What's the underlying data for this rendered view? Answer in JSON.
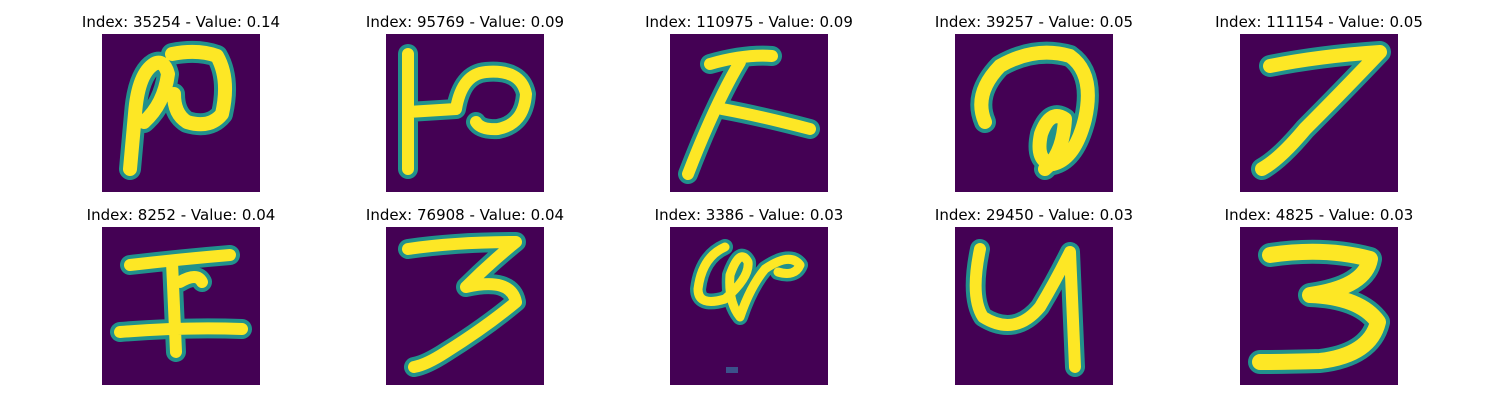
{
  "figure": {
    "panels": [
      {
        "title": "Index: 35254 - Value: 0.14",
        "glyph": "ro-like",
        "colormap": "viridis"
      },
      {
        "title": "Index: 95769 - Value: 0.09",
        "glyph": "hook-P",
        "colormap": "viridis"
      },
      {
        "title": "Index: 110975 - Value: 0.09",
        "glyph": "lambda-like",
        "colormap": "viridis"
      },
      {
        "title": "Index: 39257 - Value: 0.05",
        "glyph": "loop-a",
        "colormap": "viridis"
      },
      {
        "title": "Index: 111154 - Value: 0.05",
        "glyph": "seven",
        "colormap": "viridis"
      },
      {
        "title": "Index: 8252 - Value: 0.04",
        "glyph": "I-like",
        "colormap": "viridis"
      },
      {
        "title": "Index: 76908 - Value: 0.04",
        "glyph": "three-open",
        "colormap": "viridis"
      },
      {
        "title": "Index: 3386 - Value: 0.03",
        "glyph": "knot-loop",
        "colormap": "viridis"
      },
      {
        "title": "Index: 29450 - Value: 0.03",
        "glyph": "y-like",
        "colormap": "viridis"
      },
      {
        "title": "Index: 4825 - Value: 0.03",
        "glyph": "three-closed",
        "colormap": "viridis"
      }
    ],
    "colors": {
      "background": "#440154",
      "stroke_edge": "#21918c",
      "stroke_core": "#fde725"
    }
  }
}
